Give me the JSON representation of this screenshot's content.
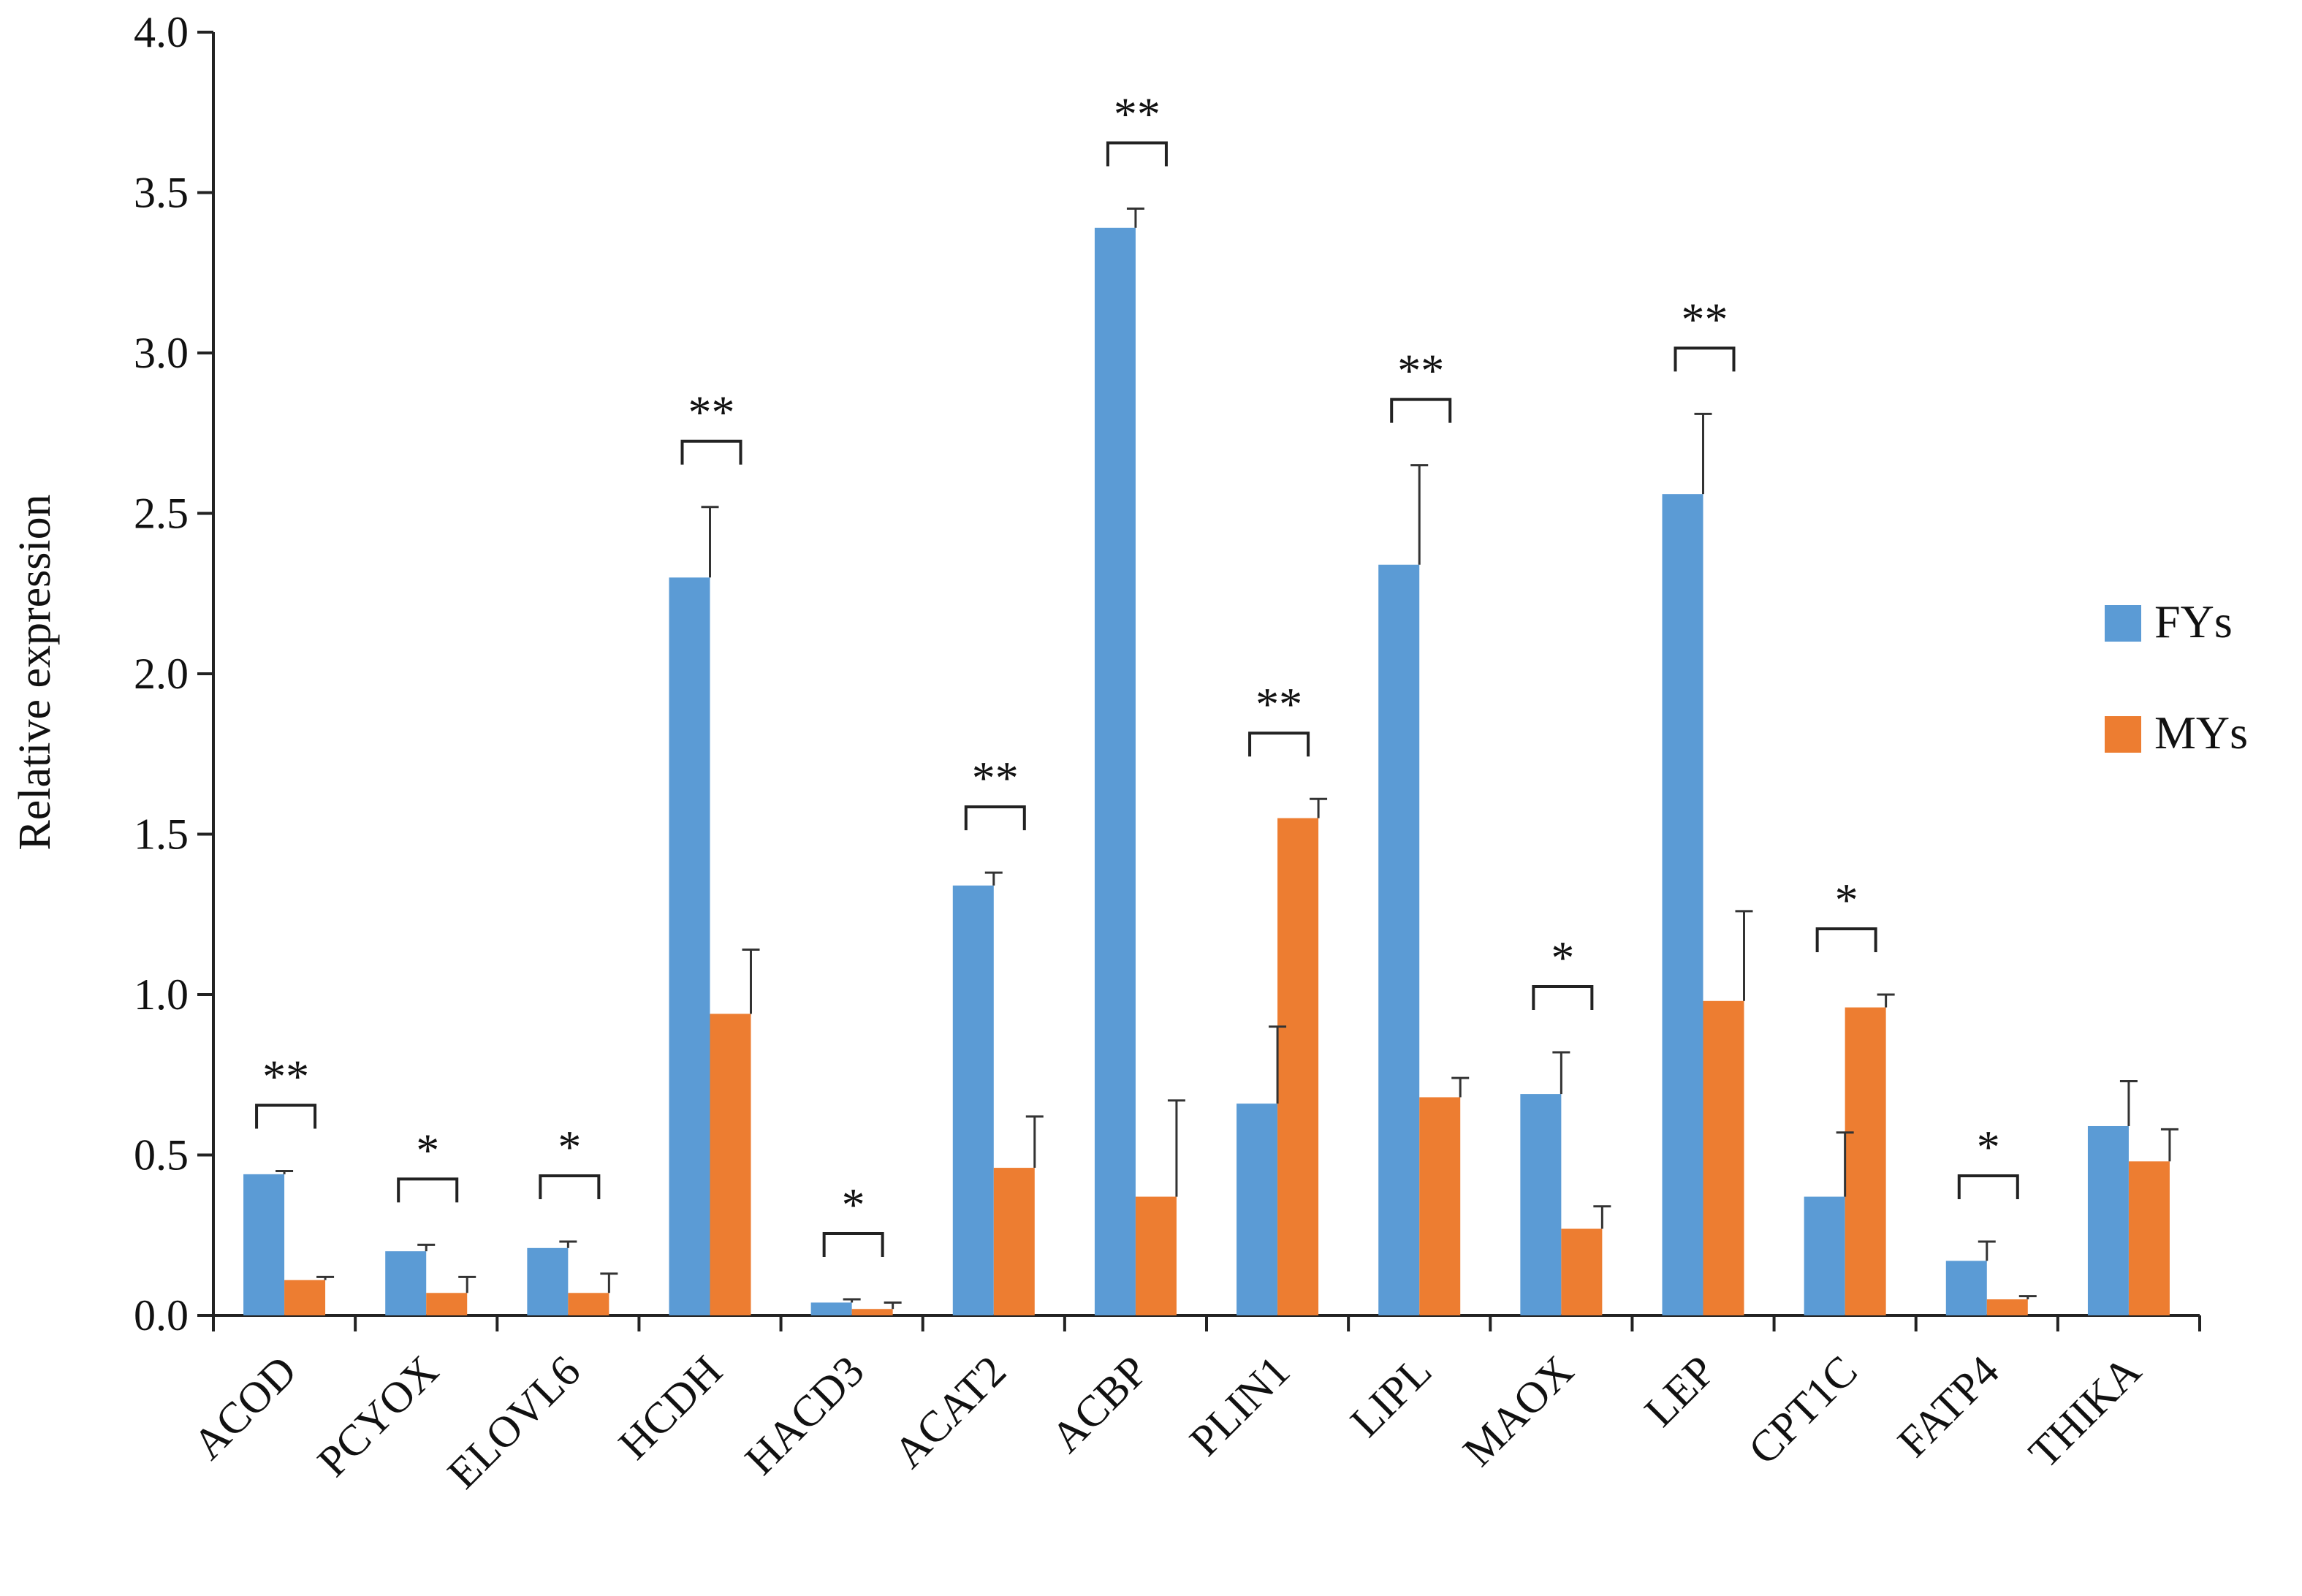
{
  "chart_data": {
    "type": "bar",
    "title": "",
    "xlabel": "",
    "ylabel": "Relative expression",
    "ylim": [
      0,
      4.0
    ],
    "yticks": [
      "0.0",
      "0.5",
      "1.0",
      "1.5",
      "2.0",
      "2.5",
      "3.0",
      "3.5",
      "4.0"
    ],
    "grid": false,
    "legend_position": "right",
    "categories": [
      "ACOD",
      "PCYOX",
      "ELOVL6",
      "HCDH",
      "HACD3",
      "ACAT2",
      "ACBP",
      "PLIN1",
      "LIPL",
      "MAOX",
      "LEP",
      "CPT1C",
      "FATP4",
      "THIKA"
    ],
    "series": [
      {
        "name": "FYs",
        "color": "#5b9bd5",
        "values": [
          0.44,
          0.2,
          0.21,
          2.3,
          0.04,
          1.34,
          3.39,
          0.66,
          2.34,
          0.69,
          2.56,
          0.37,
          0.17,
          0.59
        ],
        "errors": [
          0.01,
          0.02,
          0.02,
          0.22,
          0.01,
          0.04,
          0.06,
          0.24,
          0.31,
          0.13,
          0.25,
          0.2,
          0.06,
          0.14
        ]
      },
      {
        "name": "MYs",
        "color": "#ed7d31",
        "values": [
          0.11,
          0.07,
          0.07,
          0.94,
          0.02,
          0.46,
          0.37,
          1.55,
          0.68,
          0.27,
          0.98,
          0.96,
          0.05,
          0.48
        ],
        "errors": [
          0.01,
          0.05,
          0.06,
          0.2,
          0.02,
          0.16,
          0.3,
          0.06,
          0.06,
          0.07,
          0.28,
          0.04,
          0.01,
          0.1
        ]
      }
    ],
    "significance": [
      "**",
      "*",
      "*",
      "**",
      "*",
      "**",
      "**",
      "**",
      "**",
      "*",
      "**",
      "*",
      "*",
      ""
    ]
  }
}
